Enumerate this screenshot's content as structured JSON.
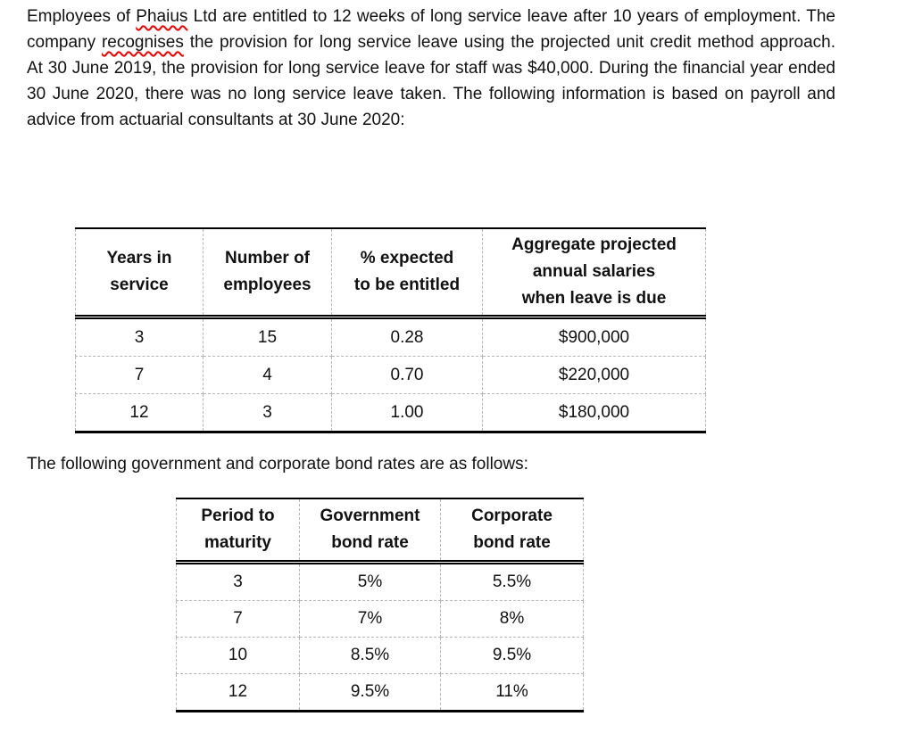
{
  "intro_paragraph": {
    "segments": [
      {
        "text": "Employees of "
      },
      {
        "text": "Phaius",
        "spellcheck": true
      },
      {
        "text": " Ltd are entitled to 12 weeks of long service leave after 10 years of employment. The company "
      },
      {
        "text": "recognises",
        "spellcheck": true
      },
      {
        "text": " the provision for long service leave using the projected unit credit method approach. At 30 June 2019, the provision for long service leave for staff was $40,000. During the financial year ended 30 June 2020, there was no long service leave taken. The following information is based on payroll and advice from actuarial consultants at 30 June 2020:"
      }
    ]
  },
  "salary_table": {
    "headers": [
      [
        "Years in",
        "service"
      ],
      [
        "Number of",
        "employees"
      ],
      [
        "% expected",
        "to be entitled"
      ],
      [
        "Aggregate projected",
        "annual salaries",
        "when leave is due"
      ]
    ],
    "rows": [
      [
        "3",
        "15",
        "0.28",
        "$900,000"
      ],
      [
        "7",
        "4",
        "0.70",
        "$220,000"
      ],
      [
        "12",
        "3",
        "1.00",
        "$180,000"
      ]
    ]
  },
  "bond_intro": "The following government and corporate bond rates are as follows:",
  "bond_table": {
    "headers": [
      [
        "Period to",
        "maturity"
      ],
      [
        "Government",
        "bond rate"
      ],
      [
        "Corporate",
        "bond rate"
      ]
    ],
    "rows": [
      [
        "3",
        "5%",
        "5.5%"
      ],
      [
        "7",
        "7%",
        "8%"
      ],
      [
        "10",
        "8.5%",
        "9.5%"
      ],
      [
        "12",
        "9.5%",
        "11%"
      ]
    ]
  },
  "colors": {
    "page_background": "#ffffff",
    "text": "#111111",
    "spellcheck_red": "#e60000",
    "table_solid_border": "#000000",
    "table_dashed_border": "#b5b5b5"
  }
}
